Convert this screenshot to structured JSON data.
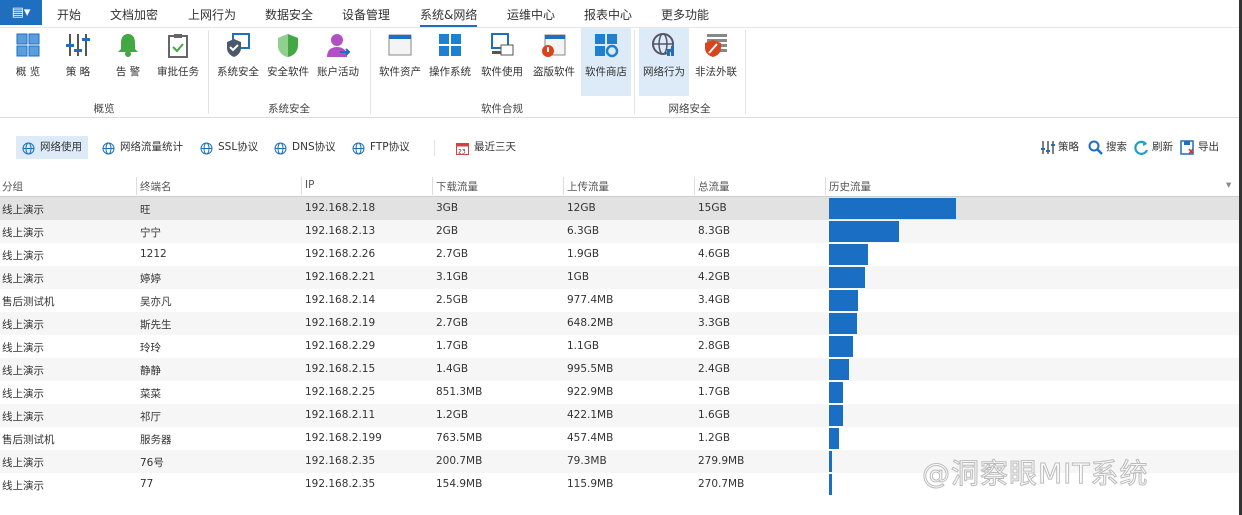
{
  "menu": {
    "app_icon": "app-menu-icon",
    "tabs": [
      "开始",
      "文档加密",
      "上网行为",
      "数据安全",
      "设备管理",
      "系统&网络",
      "运维中心",
      "报表中心",
      "更多功能"
    ],
    "active": 5
  },
  "ribbon": {
    "groups": [
      {
        "label": "概览",
        "items": [
          {
            "label": "概 览",
            "icon": "overview-grid-icon"
          },
          {
            "label": "策 略",
            "icon": "policy-sliders-icon"
          },
          {
            "label": "告 警",
            "icon": "alarm-bell-icon"
          },
          {
            "label": "审批任务",
            "icon": "approval-clipboard-icon"
          }
        ]
      },
      {
        "label": "系统安全",
        "items": [
          {
            "label": "系统安全",
            "icon": "system-security-icon"
          },
          {
            "label": "安全软件",
            "icon": "security-shield-icon"
          },
          {
            "label": "账户活动",
            "icon": "account-activity-icon"
          }
        ]
      },
      {
        "label": "软件合规",
        "items": [
          {
            "label": "软件资产",
            "icon": "software-asset-icon"
          },
          {
            "label": "操作系统",
            "icon": "windows-os-icon"
          },
          {
            "label": "软件使用",
            "icon": "software-usage-icon"
          },
          {
            "label": "盗版软件",
            "icon": "pirated-software-icon"
          },
          {
            "label": "软件商店",
            "icon": "software-store-icon"
          }
        ]
      },
      {
        "label": "网络安全",
        "items": [
          {
            "label": "网络行为",
            "icon": "network-behavior-icon"
          },
          {
            "label": "非法外联",
            "icon": "illegal-outbound-icon"
          }
        ]
      }
    ],
    "selected": [
      "软件商店",
      "网络行为"
    ]
  },
  "toolbar": {
    "tabs": [
      {
        "label": "网络使用",
        "icon": "network-usage-icon"
      },
      {
        "label": "网络流量统计",
        "icon": "traffic-stats-icon"
      },
      {
        "label": "SSL协议",
        "icon": "ssl-icon"
      },
      {
        "label": "DNS协议",
        "icon": "dns-icon"
      },
      {
        "label": "FTP协议",
        "icon": "ftp-icon"
      }
    ],
    "active_tab": "网络使用",
    "date_range": {
      "label": "最近三天",
      "icon": "calendar-icon"
    },
    "actions": [
      {
        "label": "策略",
        "icon": "policy-icon"
      },
      {
        "label": "搜索",
        "icon": "search-icon"
      },
      {
        "label": "刷新",
        "icon": "refresh-icon"
      },
      {
        "label": "导出",
        "icon": "export-icon"
      }
    ]
  },
  "table": {
    "columns": [
      "分组",
      "终端名",
      "IP",
      "下载流量",
      "上传流量",
      "总流量",
      "历史流量"
    ],
    "rows": [
      [
        "线上演示",
        "旺",
        "192.168.2.18",
        "3GB",
        "12GB",
        "15GB"
      ],
      [
        "线上演示",
        "宁宁",
        "192.168.2.13",
        "2GB",
        "6.3GB",
        "8.3GB"
      ],
      [
        "线上演示",
        "1212",
        "192.168.2.26",
        "2.7GB",
        "1.9GB",
        "4.6GB"
      ],
      [
        "线上演示",
        "婷婷",
        "192.168.2.21",
        "3.1GB",
        "1GB",
        "4.2GB"
      ],
      [
        "售后测试机",
        "吴亦凡",
        "192.168.2.14",
        "2.5GB",
        "977.4MB",
        "3.4GB"
      ],
      [
        "线上演示",
        "斯先生",
        "192.168.2.19",
        "2.7GB",
        "648.2MB",
        "3.3GB"
      ],
      [
        "线上演示",
        "玲玲",
        "192.168.2.29",
        "1.7GB",
        "1.1GB",
        "2.8GB"
      ],
      [
        "线上演示",
        "静静",
        "192.168.2.15",
        "1.4GB",
        "995.5MB",
        "2.4GB"
      ],
      [
        "线上演示",
        "菜菜",
        "192.168.2.25",
        "851.3MB",
        "922.9MB",
        "1.7GB"
      ],
      [
        "线上演示",
        "祁厅",
        "192.168.2.11",
        "1.2GB",
        "422.1MB",
        "1.6GB"
      ],
      [
        "售后测试机",
        "服务器",
        "192.168.2.199",
        "763.5MB",
        "457.4MB",
        "1.2GB"
      ],
      [
        "线上演示",
        "76号",
        "192.168.2.35",
        "200.7MB",
        "79.3MB",
        "279.9MB"
      ],
      [
        "线上演示",
        "77",
        "192.168.2.35",
        "154.9MB",
        "115.9MB",
        "270.7MB"
      ]
    ],
    "history_gb": [
      15,
      8.3,
      4.6,
      4.2,
      3.4,
      3.3,
      2.8,
      2.4,
      1.7,
      1.6,
      1.2,
      0.28,
      0.27
    ],
    "selected_row": 0,
    "bar_color": "#1a6fc4"
  },
  "watermark": "@洞察眼MIT系统",
  "colors": {
    "accent": "#1e6fbf",
    "selected_bg": "#dcebf7"
  }
}
